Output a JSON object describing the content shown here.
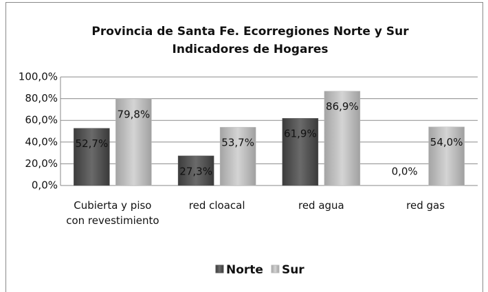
{
  "chart_data": {
    "type": "bar",
    "title": "Provincia de Santa Fe. Ecorregiones Norte y Sur",
    "subtitle": "Indicadores de Hogares",
    "categories": [
      "Cubierta y piso con revestimiento",
      "red cloacal",
      "red agua",
      "red gas"
    ],
    "series": [
      {
        "name": "Norte",
        "color": "#555555",
        "values": [
          52.7,
          27.3,
          61.9,
          0.0
        ],
        "value_labels": [
          "52,7%",
          "27,3%",
          "61,9%",
          "0,0%"
        ]
      },
      {
        "name": "Sur",
        "color": "#b8b8b8",
        "values": [
          79.8,
          53.7,
          86.9,
          54.0
        ],
        "value_labels": [
          "79,8%",
          "53,7%",
          "86,9%",
          "54,0%"
        ]
      }
    ],
    "ylim": [
      0,
      100
    ],
    "yticks": [
      {
        "value": 0,
        "label": "0,0%"
      },
      {
        "value": 20,
        "label": "20,0%"
      },
      {
        "value": 40,
        "label": "40,0%"
      },
      {
        "value": 60,
        "label": "60,0%"
      },
      {
        "value": 80,
        "label": "80,0%"
      },
      {
        "value": 100,
        "label": "100,0%"
      }
    ],
    "grid": true,
    "legend": "bottom"
  }
}
